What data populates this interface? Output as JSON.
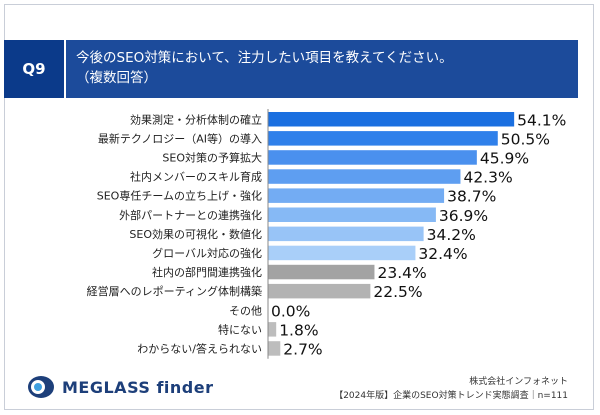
{
  "header": {
    "qnum": "Q9",
    "question_line1": "今後のSEO対策において、注力したい項目を教えてください。",
    "question_line2": "（複数回答）"
  },
  "chart_data": {
    "type": "bar",
    "orientation": "horizontal",
    "categories": [
      "効果測定・分析体制の確立",
      "最新テクノロジー（AI等）の導入",
      "SEO対策の予算拡大",
      "社内メンバーのスキル育成",
      "SEO専任チームの立ち上げ・強化",
      "外部パートナーとの連携強化",
      "SEO効果の可視化・数値化",
      "グローバル対応の強化",
      "社内の部門間連携強化",
      "経営層へのレポーティング体制構築",
      "その他",
      "特にない",
      "わからない/答えられない"
    ],
    "values": [
      54.1,
      50.5,
      45.9,
      42.3,
      38.7,
      36.9,
      34.2,
      32.4,
      23.4,
      22.5,
      0.0,
      1.8,
      2.7
    ],
    "value_labels": [
      "54.1%",
      "50.5%",
      "45.9%",
      "42.3%",
      "38.7%",
      "36.9%",
      "34.2%",
      "32.4%",
      "23.4%",
      "22.5%",
      "0.0%",
      "1.8%",
      "2.7%"
    ],
    "colors": [
      "#1a6fe0",
      "#2f80ea",
      "#4a90ee",
      "#5e9ef1",
      "#73acf3",
      "#86b9f5",
      "#98c4f7",
      "#a9cff9",
      "#a3a3a3",
      "#b3b3b3",
      "#bdbdbd",
      "#bdbdbd",
      "#bdbdbd"
    ],
    "xlim": [
      0,
      60
    ]
  },
  "footer": {
    "brand": "MEGLASS finder",
    "company": "株式会社インフォネット",
    "survey": "【2024年版】企業のSEO対策トレンド実態調査｜n=111"
  }
}
